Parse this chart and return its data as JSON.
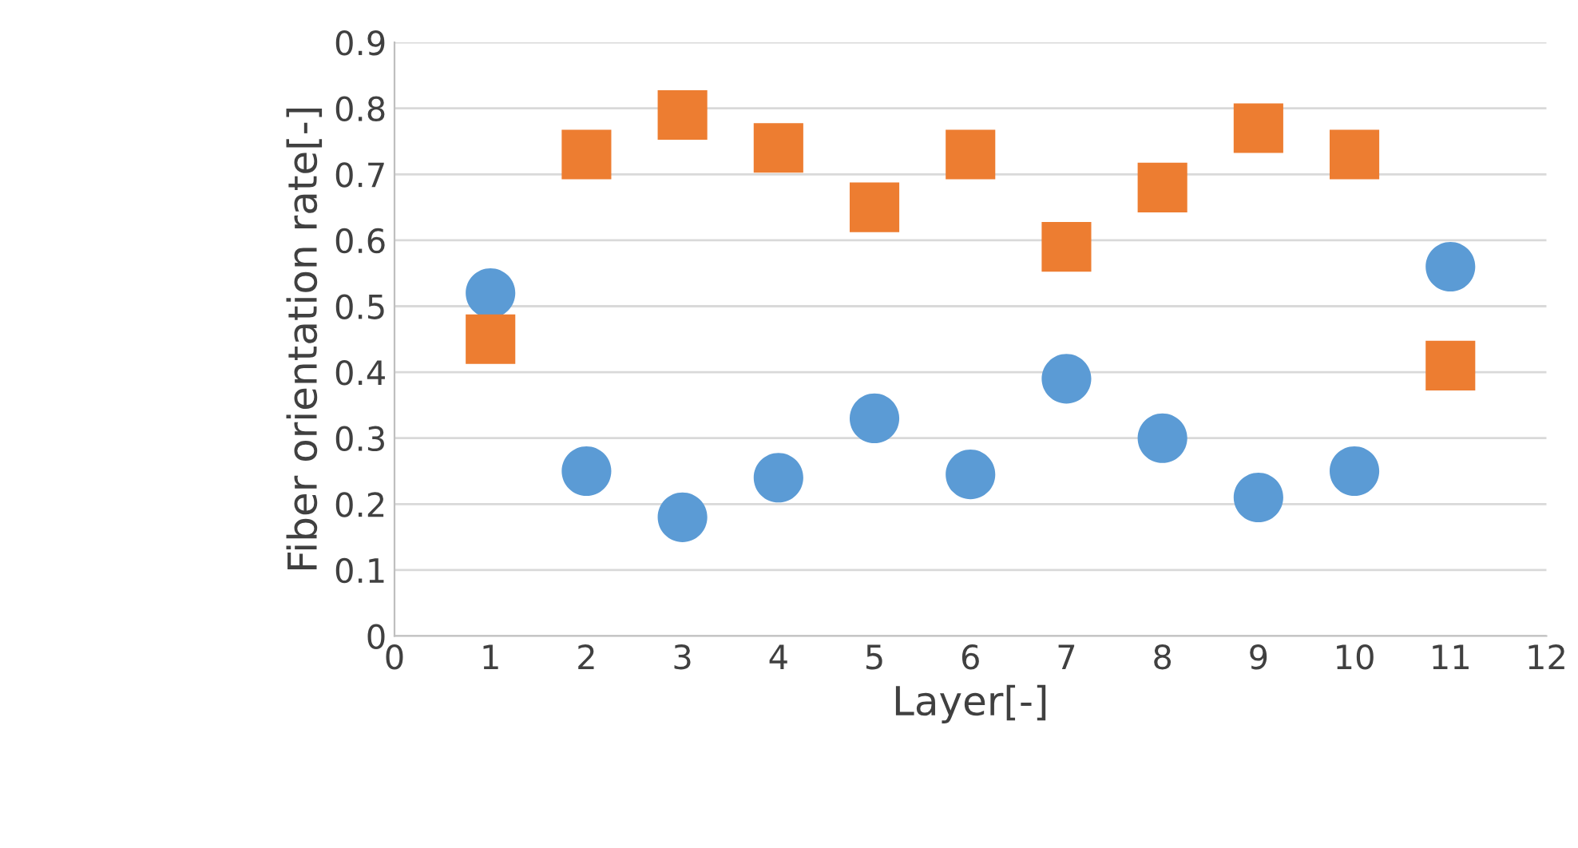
{
  "chart_data": {
    "type": "scatter",
    "xlabel": "Layer[-]",
    "ylabel": "Fiber orientation rate[-]",
    "x": [
      1,
      2,
      3,
      4,
      5,
      6,
      7,
      8,
      9,
      10,
      11
    ],
    "series": [
      {
        "color": "#5b9bd5",
        "marker": "circle",
        "values": [
          0.52,
          0.25,
          0.18,
          0.24,
          0.33,
          0.245,
          0.39,
          0.3,
          0.21,
          0.25,
          0.56
        ]
      },
      {
        "color": "#ed7d31",
        "marker": "square",
        "values": [
          0.45,
          0.73,
          0.79,
          0.74,
          0.65,
          0.73,
          0.59,
          0.68,
          0.77,
          0.73,
          0.41
        ]
      }
    ],
    "xlim": [
      0,
      12
    ],
    "xticks": [
      0,
      1,
      2,
      3,
      4,
      5,
      6,
      7,
      8,
      9,
      10,
      11,
      12
    ],
    "ylim": [
      0,
      0.9
    ],
    "yticks": [
      0,
      0.1,
      0.2,
      0.3,
      0.4,
      0.5,
      0.6,
      0.7,
      0.8,
      0.9
    ],
    "grid": "y",
    "legend": false
  }
}
